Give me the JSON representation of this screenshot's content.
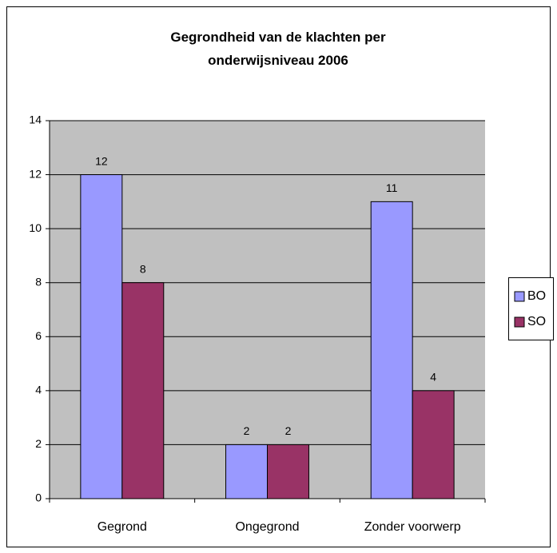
{
  "chart_data": {
    "type": "bar",
    "title": "Gegrondheid van de klachten per onderwijsniveau 2006",
    "categories": [
      "Gegrond",
      "Ongegrond",
      "Zonder voorwerp"
    ],
    "series": [
      {
        "name": "BO",
        "color": "#9999ff",
        "values": [
          12,
          2,
          11
        ]
      },
      {
        "name": "SO",
        "color": "#993366",
        "values": [
          8,
          2,
          4
        ]
      }
    ],
    "ylim": [
      0,
      14
    ],
    "yticks": [
      0,
      2,
      4,
      6,
      8,
      10,
      12,
      14
    ],
    "grid": true,
    "legend": "right"
  }
}
